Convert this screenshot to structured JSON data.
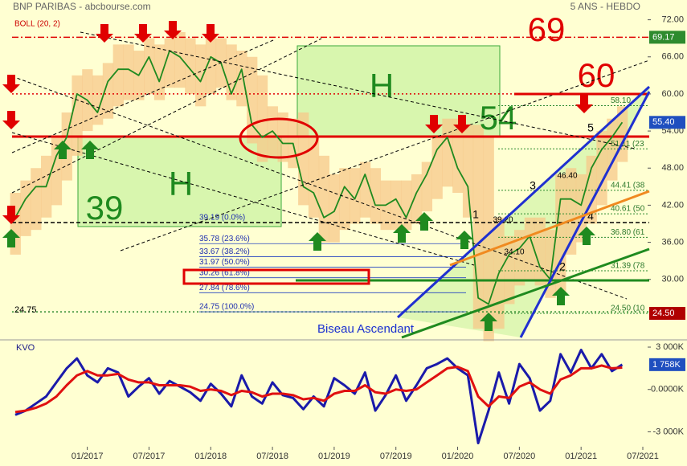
{
  "chart_data": [
    {
      "type": "line",
      "title": "BNP PARIBAS - abcbourse.com",
      "subtitle": "5 ANS - HEBDO",
      "indicator": "BOLL (20, 2)",
      "x": [
        "2016-06",
        "2016-07",
        "2016-08",
        "2016-09",
        "2016-10",
        "2016-11",
        "2016-12",
        "2017-01",
        "2017-02",
        "2017-03",
        "2017-04",
        "2017-05",
        "2017-06",
        "2017-07",
        "2017-08",
        "2017-09",
        "2017-10",
        "2017-11",
        "2017-12",
        "2018-01",
        "2018-02",
        "2018-03",
        "2018-04",
        "2018-05",
        "2018-06",
        "2018-07",
        "2018-08",
        "2018-09",
        "2018-10",
        "2018-11",
        "2018-12",
        "2019-01",
        "2019-02",
        "2019-03",
        "2019-04",
        "2019-05",
        "2019-06",
        "2019-07",
        "2019-08",
        "2019-09",
        "2019-10",
        "2019-11",
        "2019-12",
        "2020-01",
        "2020-02",
        "2020-03",
        "2020-04",
        "2020-05",
        "2020-06",
        "2020-07",
        "2020-08",
        "2020-09",
        "2020-10",
        "2020-11",
        "2020-12",
        "2021-01",
        "2021-02",
        "2021-03",
        "2021-04",
        "2021-05"
      ],
      "series": [
        {
          "color": "#1f8a1f",
          "values": [
            40,
            43,
            45,
            45,
            50,
            53,
            60,
            59,
            57,
            62,
            64,
            64,
            63,
            66,
            62,
            67,
            66,
            64,
            62,
            66,
            65,
            60,
            64,
            55,
            53,
            54,
            52,
            52,
            45,
            44,
            40,
            41,
            45,
            43,
            47,
            42,
            42,
            43,
            40,
            44,
            47,
            51,
            53,
            48,
            45,
            27,
            26,
            31,
            34,
            35,
            37,
            32,
            30,
            43,
            43,
            42,
            48,
            51,
            53,
            55.4
          ]
        }
      ],
      "bands": {
        "color": "#f7c88a",
        "upper": [
          44,
          46,
          48,
          50,
          53,
          57,
          63,
          64,
          63,
          65,
          68,
          68,
          67,
          69,
          68,
          69,
          70,
          69,
          68,
          69,
          69,
          68,
          67,
          66,
          63,
          58,
          57,
          56,
          57,
          53,
          50,
          47,
          48,
          48,
          49,
          48,
          46,
          46,
          46,
          47,
          49,
          53,
          56,
          56,
          55,
          55,
          53,
          40,
          37,
          38,
          40,
          40,
          38,
          47,
          48,
          47,
          50,
          54,
          56,
          58
        ],
        "lower": [
          34,
          37,
          38,
          40,
          42,
          46,
          50,
          54,
          55,
          56,
          58,
          59,
          59,
          60,
          59,
          61,
          61,
          60,
          58,
          60,
          61,
          59,
          58,
          52,
          49,
          50,
          49,
          48,
          42,
          40,
          36,
          36,
          38,
          39,
          40,
          39,
          38,
          38,
          38,
          39,
          41,
          43,
          45,
          44,
          40,
          22,
          20,
          22,
          26,
          29,
          30,
          29,
          27,
          28,
          34,
          36,
          39,
          42,
          46,
          49
        ]
      },
      "xlim": [
        "2016-06",
        "2021-07"
      ],
      "ylim": [
        20.6,
        75.2
      ],
      "yticks": [
        {
          "value": 72,
          "label": "72.00"
        },
        {
          "value": 66,
          "label": "66.00"
        },
        {
          "value": 60,
          "label": "60.00"
        },
        {
          "value": 54,
          "label": "54.00"
        },
        {
          "value": 48,
          "label": "48.00"
        },
        {
          "value": 42,
          "label": "42.00"
        },
        {
          "value": 36,
          "label": "36.00"
        },
        {
          "value": 30,
          "label": "30.00"
        }
      ],
      "markers": [
        {
          "value": 69.17,
          "label": "69.17",
          "color": "#2e8b2e"
        },
        {
          "value": 55.4,
          "label": "55.40",
          "color": "#1f4fbf"
        },
        {
          "value": 24.5,
          "label": "24.50",
          "color": "#b00000"
        }
      ],
      "levels": [
        {
          "value": 69.17,
          "color": "#e00000",
          "style": "dashdot"
        },
        {
          "value": 60,
          "color": "#e00000",
          "style": "dotted"
        },
        {
          "value": 53.1,
          "color": "#e00000",
          "style": "solid"
        },
        {
          "value": 39.19,
          "color": "#000000",
          "style": "dashed"
        },
        {
          "value": 24.75,
          "color": "#2e8b2e",
          "style": "dotted"
        }
      ],
      "fib_left": [
        {
          "value": 39.19,
          "label": "39.19 (0.0%)"
        },
        {
          "value": 35.78,
          "label": "35.78 (23.6%)"
        },
        {
          "value": 33.67,
          "label": "33.67 (38.2%)"
        },
        {
          "value": 31.97,
          "label": "31.97 (50.0%)"
        },
        {
          "value": 30.26,
          "label": "30.26 (61.8%)"
        },
        {
          "value": 27.84,
          "label": "27.84 (78.6%)"
        },
        {
          "value": 24.75,
          "label": "24.75 (100.0%)"
        }
      ],
      "fib_right": [
        {
          "value": 58.1,
          "label": "58.10"
        },
        {
          "value": 51.11,
          "label": "51.11 (23"
        },
        {
          "value": 44.41,
          "label": "44.41 (38"
        },
        {
          "value": 40.61,
          "label": "40.61 (50"
        },
        {
          "value": 36.8,
          "label": "36.80 (61"
        },
        {
          "value": 31.39,
          "label": "31.39 (78"
        },
        {
          "value": 24.5,
          "label": "24.50 (10"
        }
      ],
      "annotations": [
        "69",
        "60",
        "54",
        "39",
        "H",
        "H",
        "1",
        "2",
        "3",
        "4",
        "5",
        "39.20",
        "34.10",
        "46.40",
        "Biseau Ascendant",
        "24.75"
      ]
    },
    {
      "type": "line",
      "title": "KVO",
      "x": [
        "2016-06",
        "2016-07",
        "2016-08",
        "2016-09",
        "2016-10",
        "2016-11",
        "2016-12",
        "2017-01",
        "2017-02",
        "2017-03",
        "2017-04",
        "2017-05",
        "2017-06",
        "2017-07",
        "2017-08",
        "2017-09",
        "2017-10",
        "2017-11",
        "2017-12",
        "2018-01",
        "2018-02",
        "2018-03",
        "2018-04",
        "2018-05",
        "2018-06",
        "2018-07",
        "2018-08",
        "2018-09",
        "2018-10",
        "2018-11",
        "2018-12",
        "2019-01",
        "2019-02",
        "2019-03",
        "2019-04",
        "2019-05",
        "2019-06",
        "2019-07",
        "2019-08",
        "2019-09",
        "2019-10",
        "2019-11",
        "2019-12",
        "2020-01",
        "2020-02",
        "2020-03",
        "2020-04",
        "2020-05",
        "2020-06",
        "2020-07",
        "2020-08",
        "2020-09",
        "2020-10",
        "2020-11",
        "2020-12",
        "2021-01",
        "2021-02",
        "2021-03",
        "2021-04",
        "2021-05"
      ],
      "series": [
        {
          "color": "#1a1aaa",
          "values": [
            -1800,
            -1500,
            -1000,
            -500,
            500,
            1500,
            2200,
            1000,
            500,
            1500,
            1200,
            -500,
            200,
            800,
            -300,
            600,
            200,
            -200,
            -800,
            400,
            -300,
            -1200,
            1000,
            -500,
            -1000,
            500,
            -400,
            -600,
            -1400,
            -500,
            -1200,
            800,
            300,
            -300,
            1200,
            -1500,
            -400,
            1000,
            -800,
            300,
            1500,
            1800,
            2200,
            1500,
            1000,
            -3800,
            -1500,
            1200,
            -1000,
            1800,
            800,
            -1500,
            -800,
            2500,
            1200,
            2800,
            1500,
            2500,
            1300,
            1758
          ]
        },
        {
          "color": "#e01010",
          "values": [
            -1600,
            -1500,
            -1300,
            -1000,
            -500,
            300,
            1000,
            1300,
            1000,
            1000,
            1100,
            700,
            500,
            500,
            300,
            300,
            300,
            200,
            -100,
            0,
            -100,
            -400,
            -100,
            -200,
            -500,
            -300,
            -300,
            -400,
            -700,
            -600,
            -800,
            -300,
            -100,
            -100,
            300,
            -200,
            -300,
            0,
            -100,
            0,
            500,
            1000,
            1500,
            1600,
            1300,
            -500,
            -1200,
            -500,
            -600,
            200,
            500,
            0,
            -300,
            700,
            1000,
            1500,
            1500,
            1700,
            1500,
            1550
          ]
        }
      ],
      "xlim": [
        "2016-06",
        "2021-07"
      ],
      "ylim": [
        -4000,
        3400
      ],
      "yticks": [
        {
          "value": 3000,
          "label": "3 000K"
        },
        {
          "value": 0,
          "label": "0.0000K"
        },
        {
          "value": -3000,
          "label": "-3 000K"
        }
      ],
      "xticks": [
        {
          "value": "2017-01",
          "label": "01/2017"
        },
        {
          "value": "2017-07",
          "label": "07/2017"
        },
        {
          "value": "2018-01",
          "label": "01/2018"
        },
        {
          "value": "2018-07",
          "label": "07/2018"
        },
        {
          "value": "2019-01",
          "label": "01/2019"
        },
        {
          "value": "2019-07",
          "label": "07/2019"
        },
        {
          "value": "2020-01",
          "label": "01/2020"
        },
        {
          "value": "2020-07",
          "label": "07/2020"
        },
        {
          "value": "2021-01",
          "label": "01/2021"
        },
        {
          "value": "2021-07",
          "label": "07/2021"
        }
      ],
      "markers": [
        {
          "value": 1758,
          "label": "1 758K",
          "color": "#1f4fbf"
        }
      ]
    }
  ]
}
